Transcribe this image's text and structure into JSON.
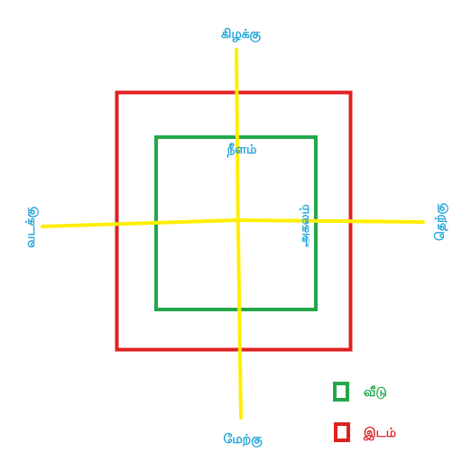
{
  "labels": {
    "north": "கிழக்கு",
    "south": "மேற்கு",
    "west": "வடக்கு",
    "east": "தெற்கு",
    "center_top": "நீளம்",
    "inner_right": "அகலம்"
  },
  "legend": {
    "house": {
      "label": "வீடு",
      "color": "#22a84a"
    },
    "land": {
      "label": "இடம்",
      "color": "#e02020"
    }
  },
  "colors": {
    "outer_square": "#e02020",
    "inner_square": "#22a84a",
    "axes": "#ffee00",
    "direction_text": "#1aa3d9"
  }
}
